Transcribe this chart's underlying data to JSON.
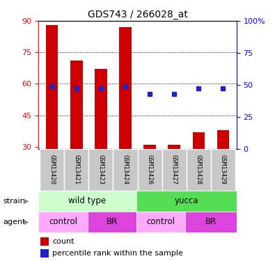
{
  "title": "GDS743 / 266028_at",
  "samples": [
    "GSM13420",
    "GSM13421",
    "GSM13423",
    "GSM13424",
    "GSM13426",
    "GSM13427",
    "GSM13428",
    "GSM13429"
  ],
  "count_values": [
    88,
    71,
    67,
    87,
    31,
    31,
    37,
    38
  ],
  "count_base": 29,
  "percentile_values": [
    49,
    47,
    47,
    49,
    43,
    43,
    47,
    47
  ],
  "ylim_left": [
    29,
    90
  ],
  "ylim_right": [
    0,
    100
  ],
  "yticks_left": [
    30,
    45,
    60,
    75,
    90
  ],
  "ytick_labels_right_vals": [
    0,
    25,
    50,
    75,
    100
  ],
  "ytick_labels_right": [
    "0",
    "25",
    "50",
    "75",
    "100%"
  ],
  "bar_color": "#cc0000",
  "dot_color": "#2222cc",
  "bar_width": 0.5,
  "tick_bg_color": "#c8c8c8",
  "strain_wt_color": "#ccffcc",
  "strain_yu_color": "#55dd55",
  "agent_ctrl_color": "#ffaaff",
  "agent_br_color": "#dd44dd",
  "legend_count_color": "#cc0000",
  "legend_dot_color": "#2222cc"
}
